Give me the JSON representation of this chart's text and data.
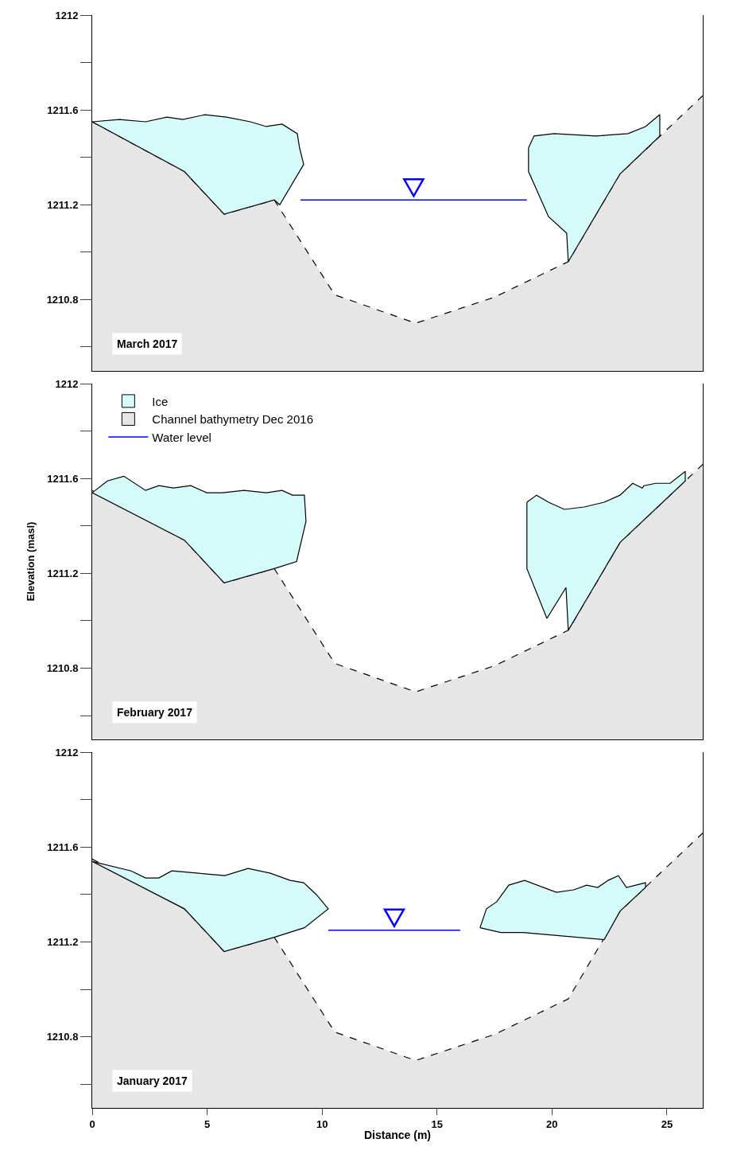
{
  "chart_data": [
    {
      "type": "area",
      "title": "March 2017",
      "xlim": [
        0,
        26.56
      ],
      "xticks": [
        0,
        5,
        10,
        15,
        20,
        25
      ],
      "ylim": [
        1210.5,
        1212
      ],
      "yticks": [
        1212,
        {
          "value": 1211.8,
          "label": null
        },
        1211.6,
        {
          "value": 1211.4,
          "label": null
        },
        1211.2,
        {
          "value": 1211.0,
          "label": null
        },
        1210.8,
        {
          "value": 1210.6,
          "label": null
        }
      ],
      "tick_labels": "y",
      "series": [
        {
          "type": "area",
          "color": "#d4fafa",
          "line_style": "solid",
          "x": [
            0,
            1.18,
            2.32,
            3.25,
            3.94,
            4.91,
            5.84,
            6.88,
            7.57,
            8.26,
            8.92,
            9.02,
            9.2,
            8.16,
            7.92,
            5.74,
            4.01,
            0,
            null,
            18.98,
            19.22,
            20.09,
            21.92,
            23.31,
            24.07,
            24.69,
            24.69,
            22.96,
            20.71,
            20.64,
            19.85,
            18.98,
            18.98
          ],
          "values": [
            1211.55,
            1211.56,
            1211.55,
            1211.57,
            1211.56,
            1211.58,
            1211.57,
            1211.55,
            1211.53,
            1211.54,
            1211.5,
            1211.44,
            1211.37,
            1211.2,
            1211.22,
            1211.16,
            1211.34,
            1211.55,
            null,
            1211.44,
            1211.49,
            1211.5,
            1211.49,
            1211.5,
            1211.53,
            1211.58,
            1211.49,
            1211.33,
            1210.96,
            1211.08,
            1211.15,
            1211.34,
            1211.44
          ]
        },
        {
          "type": "area",
          "color": "#e6e6e6",
          "line_style": "dashed",
          "x": [
            0,
            4.01,
            5.74,
            7.92,
            10.55,
            14.07,
            17.5,
            20.71,
            22.96,
            26.56
          ],
          "values": [
            1211.55,
            1211.34,
            1211.16,
            1211.22,
            1210.82,
            1210.7,
            1210.81,
            1210.96,
            1211.33,
            1211.66
          ]
        },
        {
          "type": "line",
          "name": "Water level",
          "color": "#0000ff",
          "x": [
            9.06,
            18.91
          ],
          "values": [
            1211.22,
            1211.22
          ]
        }
      ]
    },
    {
      "type": "area",
      "title": "February 2017",
      "ylabel": "Elevation (masl)",
      "legend": "top left",
      "xlim": [
        0,
        26.56
      ],
      "xticks": [
        0,
        5,
        10,
        15,
        20,
        25
      ],
      "ylim": [
        1210.5,
        1212
      ],
      "yticks": [
        1212,
        {
          "value": 1211.8,
          "label": null
        },
        1211.6,
        {
          "value": 1211.4,
          "label": null
        },
        1211.2,
        {
          "value": 1211.0,
          "label": null
        },
        1210.8,
        {
          "value": 1210.6,
          "label": null
        }
      ],
      "tick_labels": "y",
      "series": [
        {
          "type": "area",
          "name": "Ice",
          "color": "#d4fafa",
          "line_style": "solid",
          "x": [
            0,
            0.66,
            1.38,
            2.32,
            2.9,
            3.53,
            4.29,
            4.98,
            5.67,
            6.6,
            7.57,
            8.26,
            8.71,
            9.23,
            9.3,
            8.89,
            7.92,
            5.74,
            4.01,
            0,
            null,
            18.91,
            19.33,
            19.85,
            20.54,
            21.4,
            22.27,
            22.96,
            23.51,
            23.93,
            24.0,
            24.52,
            25.14,
            25.8,
            25.8,
            22.96,
            20.71,
            20.61,
            19.78,
            18.91,
            18.91
          ],
          "values": [
            1211.54,
            1211.59,
            1211.61,
            1211.55,
            1211.57,
            1211.56,
            1211.57,
            1211.54,
            1211.54,
            1211.55,
            1211.54,
            1211.55,
            1211.53,
            1211.53,
            1211.42,
            1211.25,
            1211.22,
            1211.16,
            1211.34,
            1211.54,
            null,
            1211.5,
            1211.53,
            1211.5,
            1211.47,
            1211.48,
            1211.5,
            1211.53,
            1211.58,
            1211.56,
            1211.57,
            1211.58,
            1211.58,
            1211.63,
            1211.59,
            1211.33,
            1210.96,
            1211.14,
            1211.01,
            1211.22,
            1211.5
          ]
        },
        {
          "type": "area",
          "name": "Channel bathymetry Dec 2016",
          "color": "#e6e6e6",
          "line_style": "dashed",
          "x": [
            0,
            4.01,
            5.74,
            7.92,
            10.55,
            14.07,
            17.5,
            20.71,
            22.96,
            26.56
          ],
          "values": [
            1211.55,
            1211.34,
            1211.16,
            1211.22,
            1210.82,
            1210.7,
            1210.81,
            1210.96,
            1211.33,
            1211.66
          ]
        }
      ]
    },
    {
      "type": "area",
      "title": "January 2017",
      "xlabel": "Distance (m)",
      "xlim": [
        0,
        26.56
      ],
      "xticks": [
        0,
        5,
        10,
        15,
        20,
        25
      ],
      "ylim": [
        1210.5,
        1212
      ],
      "yticks": [
        1212,
        {
          "value": 1211.8,
          "label": null
        },
        1211.6,
        {
          "value": 1211.4,
          "label": null
        },
        1211.2,
        {
          "value": 1211.0,
          "label": null
        },
        1210.8,
        {
          "value": 1210.6,
          "label": null
        }
      ],
      "series": [
        {
          "type": "area",
          "color": "#d4fafa",
          "line_style": "solid",
          "x": [
            0,
            1.69,
            2.32,
            2.9,
            3.46,
            4.63,
            5.77,
            6.78,
            7.75,
            8.61,
            9.2,
            9.75,
            10.27,
            9.23,
            7.92,
            5.74,
            4.01,
            0,
            null,
            16.87,
            17.15,
            17.6,
            18.12,
            18.81,
            20.19,
            20.95,
            21.51,
            21.99,
            22.44,
            22.89,
            23.24,
            24.07,
            24.07,
            22.96,
            22.27,
            18.74,
            17.77,
            16.87
          ],
          "values": [
            1211.54,
            1211.5,
            1211.47,
            1211.47,
            1211.5,
            1211.49,
            1211.48,
            1211.51,
            1211.49,
            1211.46,
            1211.45,
            1211.4,
            1211.34,
            1211.26,
            1211.22,
            1211.16,
            1211.34,
            1211.54,
            null,
            1211.26,
            1211.34,
            1211.37,
            1211.44,
            1211.46,
            1211.41,
            1211.42,
            1211.44,
            1211.43,
            1211.46,
            1211.48,
            1211.43,
            1211.45,
            1211.43,
            1211.33,
            1211.21,
            1211.24,
            1211.24,
            1211.26
          ]
        },
        {
          "type": "area",
          "color": "#e6e6e6",
          "line_style": "dashed",
          "x": [
            0,
            4.01,
            5.74,
            7.92,
            10.55,
            14.07,
            17.5,
            20.71,
            22.96,
            26.56
          ],
          "values": [
            1211.55,
            1211.34,
            1211.16,
            1211.22,
            1210.82,
            1210.7,
            1210.81,
            1210.96,
            1211.33,
            1211.66
          ]
        },
        {
          "type": "line",
          "color": "#0000ff",
          "x": [
            10.27,
            16.01
          ],
          "values": [
            1211.25,
            1211.25
          ]
        }
      ]
    }
  ]
}
